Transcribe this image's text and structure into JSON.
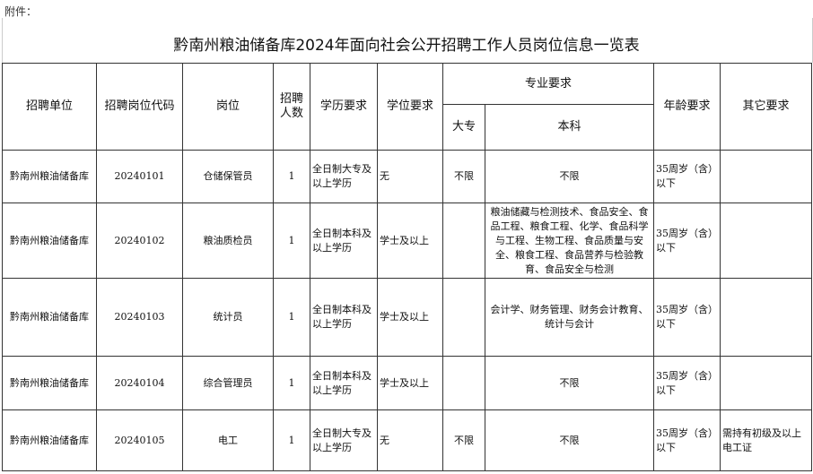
{
  "note": "附件：",
  "title": "黔南州粮油储备库2024年面向社会公开招聘工作人员岗位信息一览表",
  "headers": {
    "unit": "招聘单位",
    "code": "招聘岗位代码",
    "position": "岗位",
    "count": "招聘人数",
    "education": "学历要求",
    "degree": "学位要求",
    "major": "专业要求",
    "junior": "大专",
    "bachelor": "本科",
    "age": "年龄要求",
    "other": "其它要求"
  },
  "rows": [
    {
      "unit": "黔南州粮油储备库",
      "code": "20240101",
      "position": "仓储保管员",
      "count": "1",
      "education": "全日制大专及以上学历",
      "degree": "无",
      "junior": "不限",
      "bachelor": "不限",
      "age": "35周岁（含）以下",
      "other": ""
    },
    {
      "unit": "黔南州粮油储备库",
      "code": "20240102",
      "position": "粮油质检员",
      "count": "1",
      "education": "全日制本科及以上学历",
      "degree": "学士及以上",
      "junior": "",
      "bachelor": "粮油储藏与检测技术、食品安全、食品工程、粮食工程、化学、食品科学与工程、生物工程、食品质量与安全、粮食工程、食品营养与检验教育、食品安全与检测",
      "age": "35周岁（含）以下",
      "other": ""
    },
    {
      "unit": "黔南州粮油储备库",
      "code": "20240103",
      "position": "统计员",
      "count": "1",
      "education": "全日制本科及以上学历",
      "degree": "学士及以上",
      "junior": "",
      "bachelor": "会计学、财务管理、财务会计教育、统计与会计",
      "age": "35周岁（含）以下",
      "other": ""
    },
    {
      "unit": "黔南州粮油储备库",
      "code": "20240104",
      "position": "综合管理员",
      "count": "1",
      "education": "全日制本科及以上学历",
      "degree": "学士及以上",
      "junior": "",
      "bachelor": "不限",
      "age": "35周岁（含）以下",
      "other": ""
    },
    {
      "unit": "黔南州粮油储备库",
      "code": "20240105",
      "position": "电工",
      "count": "1",
      "education": "全日制大专及以上学历",
      "degree": "无",
      "junior": "不限",
      "bachelor": "不限",
      "age": "35周岁（含）以下",
      "other": "需持有初级及以上电工证"
    }
  ]
}
